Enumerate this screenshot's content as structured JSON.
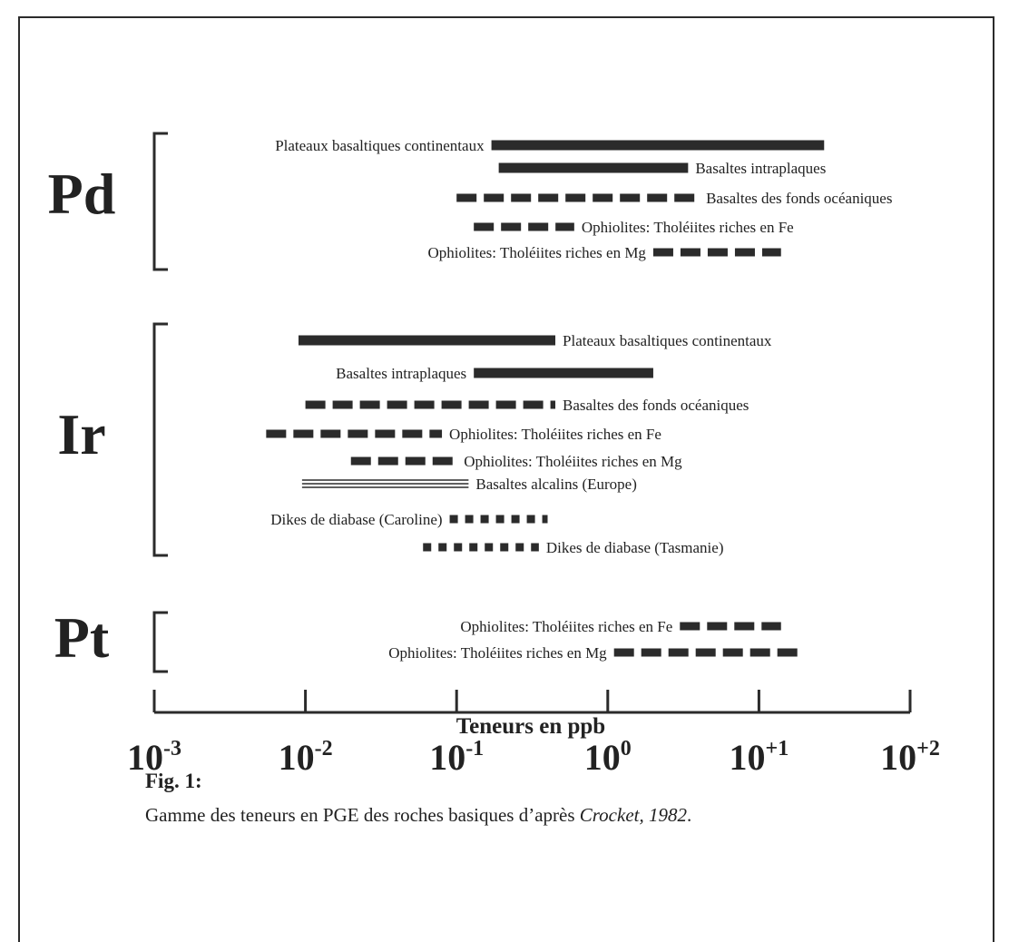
{
  "chart_data": {
    "type": "range",
    "x_scale": "log",
    "xlim": [
      0.001,
      100
    ],
    "xlabel": "Teneurs en ppb",
    "xticks": [
      {
        "base": "10",
        "exp": "-3"
      },
      {
        "base": "10",
        "exp": "-2"
      },
      {
        "base": "10",
        "exp": "-1"
      },
      {
        "base": "10",
        "exp": "0"
      },
      {
        "base": "10",
        "exp": "+1"
      },
      {
        "base": "10",
        "exp": "+2"
      }
    ],
    "groups": [
      {
        "name": "Pd",
        "ranges": [
          {
            "label": "Plateaux basaltiques continentaux",
            "min": 0.17,
            "max": 27,
            "style": "solid",
            "label_side": "left"
          },
          {
            "label": "Basaltes intraplaques",
            "min": 0.19,
            "max": 3.4,
            "style": "solid",
            "label_side": "right"
          },
          {
            "label": "Basaltes des fonds océaniques",
            "min": 0.1,
            "max": 4.0,
            "style": "dashed",
            "label_side": "right"
          },
          {
            "label": "Ophiolites: Tholéiites riches en Fe",
            "min": 0.13,
            "max": 0.6,
            "style": "dashed",
            "label_side": "right"
          },
          {
            "label": "Ophiolites: Tholéiites riches en Mg",
            "min": 2.0,
            "max": 14,
            "style": "dashed",
            "label_side": "left"
          }
        ]
      },
      {
        "name": "Ir",
        "ranges": [
          {
            "label": "Plateaux basaltiques continentaux",
            "min": 0.009,
            "max": 0.45,
            "style": "solid",
            "label_side": "right"
          },
          {
            "label": "Basaltes intraplaques",
            "min": 0.13,
            "max": 2.0,
            "style": "solid",
            "label_side": "left"
          },
          {
            "label": "Basaltes des fonds océaniques",
            "min": 0.01,
            "max": 0.45,
            "style": "dashed",
            "label_side": "right"
          },
          {
            "label": "Ophiolites: Tholéiites riches en Fe",
            "min": 0.0055,
            "max": 0.08,
            "style": "dashed",
            "label_side": "right"
          },
          {
            "label": "Ophiolites: Tholéiites riches en Mg",
            "min": 0.02,
            "max": 0.1,
            "style": "dashed",
            "label_side": "right"
          },
          {
            "label": "Basaltes alcalins (Europe)",
            "min": 0.0095,
            "max": 0.12,
            "style": "double",
            "label_side": "right"
          },
          {
            "label": "Dikes de diabase (Caroline)",
            "min": 0.09,
            "max": 0.4,
            "style": "dotted",
            "label_side": "left"
          },
          {
            "label": "Dikes de diabase (Tasmanie)",
            "min": 0.06,
            "max": 0.35,
            "style": "dotted",
            "label_side": "right"
          }
        ]
      },
      {
        "name": "Pt",
        "ranges": [
          {
            "label": "Ophiolites: Tholéiites riches en Fe",
            "min": 3.0,
            "max": 14,
            "style": "dashed",
            "label_side": "left"
          },
          {
            "label": "Ophiolites: Tholéiites riches en Mg",
            "min": 1.1,
            "max": 18,
            "style": "dashed",
            "label_side": "left"
          }
        ]
      }
    ]
  },
  "caption": {
    "title": "Fig. 1:",
    "text": "Gamme des teneurs en PGE des roches basiques d’après ",
    "reference": "Crocket, 1982",
    "end": "."
  }
}
